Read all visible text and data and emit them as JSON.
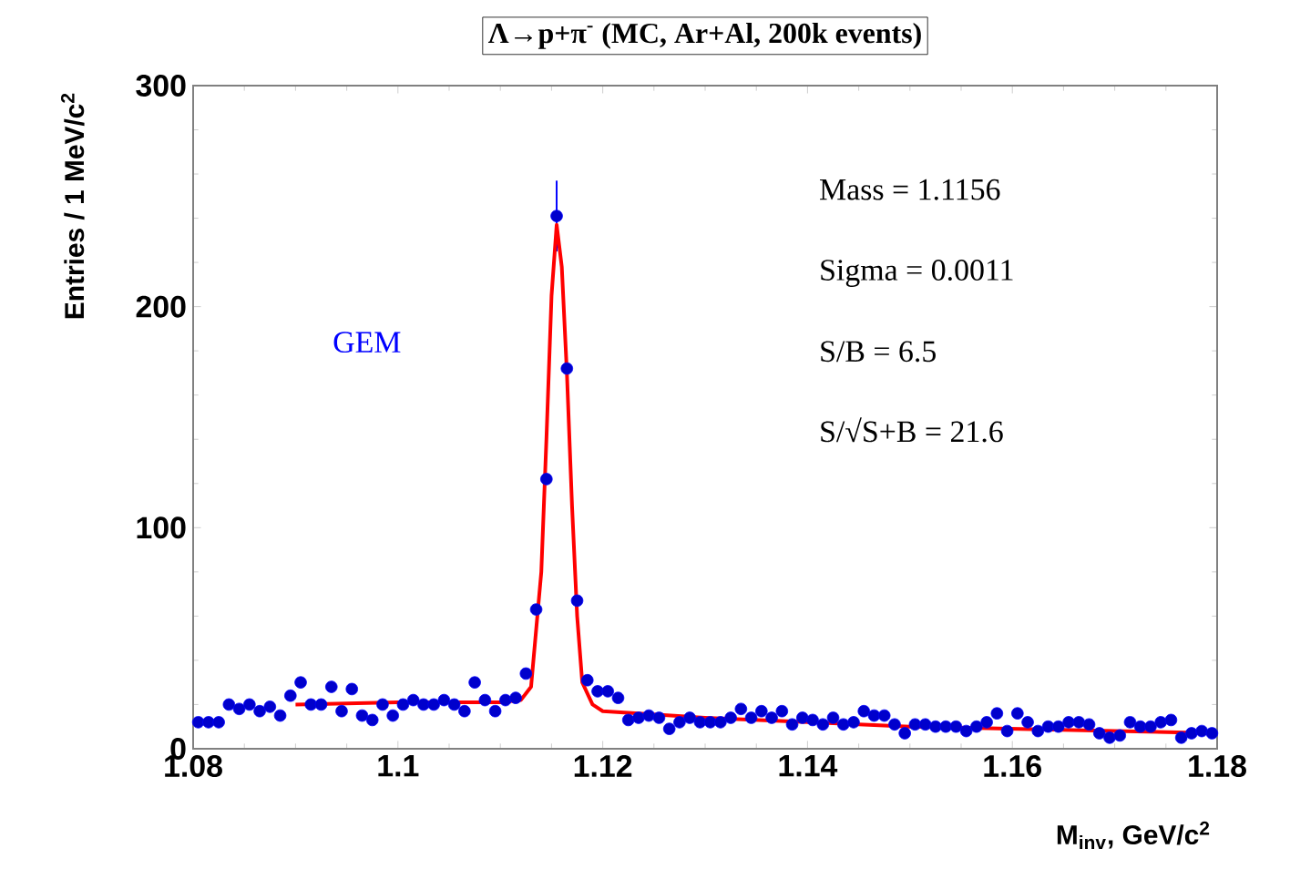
{
  "chart_data": {
    "type": "scatter",
    "title": "Λ→p+π$^{-}$ (MC, Ar+Al, 200k events)",
    "xlabel": "M$_{inv}$, GeV/c$^{2}$",
    "ylabel": "Entries / 1 MeV/c$^{2}$",
    "annotations": [
      "Mass = 1.1156",
      "Sigma = 0.0011",
      "S/B = 6.5",
      "S/√S+B = 21.6"
    ],
    "xlim": [
      1.08,
      1.18
    ],
    "xticks": [
      1.08,
      1.1,
      1.12,
      1.14,
      1.16,
      1.18
    ],
    "ylim": [
      0,
      300
    ],
    "yticks": [
      0,
      100,
      200,
      300
    ],
    "grid": false,
    "series": [
      {
        "name": "GEM",
        "color": "#0000ff",
        "x": [
          1.0805,
          1.0815,
          1.0825,
          1.0835,
          1.0845,
          1.0855,
          1.0865,
          1.0875,
          1.0885,
          1.0895,
          1.0905,
          1.0915,
          1.0925,
          1.0935,
          1.0945,
          1.0955,
          1.0965,
          1.0975,
          1.0985,
          1.0995,
          1.1005,
          1.1015,
          1.1025,
          1.1035,
          1.1045,
          1.1055,
          1.1065,
          1.1075,
          1.1085,
          1.1095,
          1.1105,
          1.1115,
          1.1125,
          1.1135,
          1.1145,
          1.1155,
          1.1165,
          1.1175,
          1.1185,
          1.1195,
          1.1205,
          1.1215,
          1.1225,
          1.1235,
          1.1245,
          1.1255,
          1.1265,
          1.1275,
          1.1285,
          1.1295,
          1.1305,
          1.1315,
          1.1325,
          1.1335,
          1.1345,
          1.1355,
          1.1365,
          1.1375,
          1.1385,
          1.1395,
          1.1405,
          1.1415,
          1.1425,
          1.1435,
          1.1445,
          1.1455,
          1.1465,
          1.1475,
          1.1485,
          1.1495,
          1.1505,
          1.1515,
          1.1525,
          1.1535,
          1.1545,
          1.1555,
          1.1565,
          1.1575,
          1.1585,
          1.1595,
          1.1605,
          1.1615,
          1.1625,
          1.1635,
          1.1645,
          1.1655,
          1.1665,
          1.1675,
          1.1685,
          1.1695,
          1.1705,
          1.1715,
          1.1725,
          1.1735,
          1.1745,
          1.1755,
          1.1765,
          1.1775,
          1.1785,
          1.1795
        ],
        "values": [
          12,
          12,
          12,
          20,
          18,
          20,
          17,
          19,
          15,
          24,
          30,
          20,
          20,
          28,
          17,
          27,
          15,
          13,
          20,
          15,
          20,
          22,
          20,
          20,
          22,
          20,
          17,
          30,
          22,
          17,
          22,
          23,
          34,
          63,
          122,
          241,
          172,
          67,
          31,
          26,
          26,
          23,
          13,
          14,
          15,
          14,
          9,
          12,
          14,
          12,
          12,
          12,
          14,
          18,
          14,
          17,
          14,
          17,
          11,
          14,
          13,
          11,
          14,
          11,
          12,
          17,
          15,
          15,
          11,
          7,
          11,
          11,
          10,
          10,
          10,
          8,
          10,
          12,
          16,
          8,
          16,
          12,
          8,
          10,
          10,
          12,
          12,
          11,
          7,
          5,
          6,
          12,
          10,
          10,
          12,
          13,
          5,
          7,
          8,
          7
        ],
        "errors": [
          null,
          null,
          null,
          null,
          null,
          null,
          null,
          null,
          null,
          null,
          null,
          null,
          null,
          null,
          null,
          null,
          null,
          null,
          null,
          null,
          null,
          null,
          null,
          null,
          null,
          null,
          null,
          null,
          null,
          null,
          null,
          null,
          null,
          null,
          null,
          16,
          null,
          null,
          null,
          null,
          null,
          null,
          null,
          null,
          null,
          null,
          null,
          null,
          null,
          null,
          null,
          null,
          null,
          null,
          null,
          null,
          null,
          null,
          null,
          null,
          null,
          null,
          null,
          null,
          null,
          null,
          null,
          null,
          null,
          null,
          null,
          null,
          null,
          null,
          null,
          null,
          null,
          null,
          null,
          null,
          null,
          null,
          null,
          null,
          null,
          null,
          null,
          null,
          null,
          null,
          null,
          null,
          null,
          null,
          null,
          null,
          null,
          null,
          null,
          null
        ]
      },
      {
        "type": "line",
        "color": "#ff0000",
        "x": [
          1.09,
          1.1,
          1.11,
          1.112,
          1.113,
          1.114,
          1.1145,
          1.115,
          1.1155,
          1.116,
          1.1165,
          1.117,
          1.1175,
          1.118,
          1.119,
          1.12,
          1.13,
          1.14,
          1.15,
          1.16,
          1.17,
          1.18
        ],
        "values": [
          20,
          21,
          21,
          22,
          28,
          80,
          140,
          205,
          237,
          218,
          170,
          110,
          60,
          30,
          20,
          17,
          14,
          12,
          10,
          9,
          8,
          7
        ]
      }
    ]
  }
}
